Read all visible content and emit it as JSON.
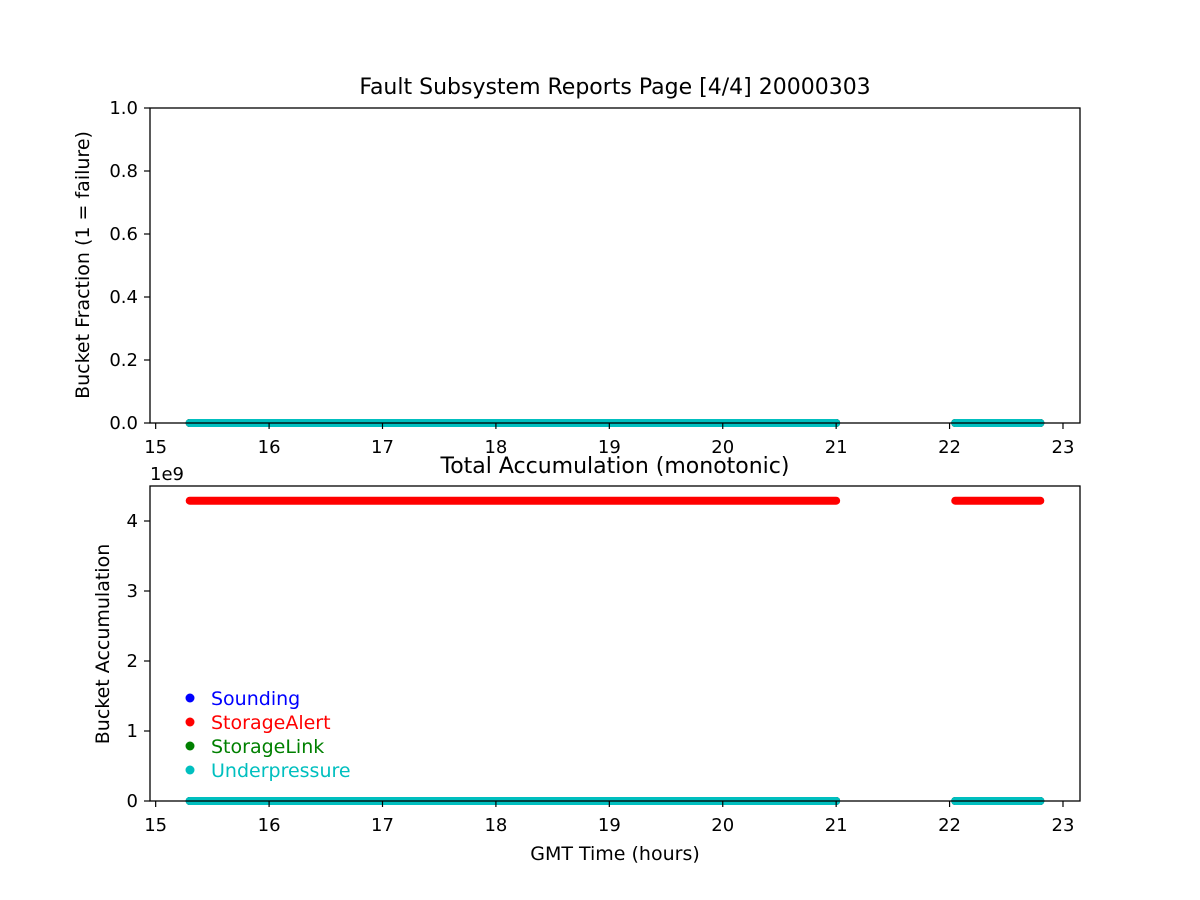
{
  "chart_data": [
    {
      "type": "scatter",
      "title": "Fault Subsystem Reports Page [4/4] 20000303",
      "xlabel": "",
      "ylabel": "Bucket Fraction (1 = failure)",
      "xlim": [
        14.95,
        23.15
      ],
      "ylim": [
        0.0,
        1.0
      ],
      "xticks": [
        "15",
        "16",
        "17",
        "18",
        "19",
        "20",
        "21",
        "22",
        "23"
      ],
      "yticks": [
        "0.0",
        "0.2",
        "0.4",
        "0.6",
        "0.8",
        "1.0"
      ],
      "grid": false,
      "series": [
        {
          "name": "Sounding",
          "color": "#0000ff",
          "segments": [
            [
              15.3,
              21.0
            ],
            [
              22.05,
              22.8
            ]
          ],
          "y": 0
        },
        {
          "name": "StorageAlert",
          "color": "#ff0000",
          "segments": [
            [
              15.3,
              21.0
            ],
            [
              22.05,
              22.8
            ]
          ],
          "y": 0
        },
        {
          "name": "StorageLink",
          "color": "#008000",
          "segments": [
            [
              15.3,
              21.0
            ],
            [
              22.05,
              22.8
            ]
          ],
          "y": 0
        },
        {
          "name": "Underpressure",
          "color": "#00bfbf",
          "segments": [
            [
              15.3,
              21.0
            ],
            [
              22.05,
              22.8
            ]
          ],
          "y": 0
        }
      ]
    },
    {
      "type": "scatter",
      "title": "Total Accumulation (monotonic)",
      "xlabel": "GMT Time (hours)",
      "ylabel": "Bucket Accumulation",
      "offset_label": "1e9",
      "xlim": [
        14.95,
        23.15
      ],
      "ylim": [
        0,
        4.5
      ],
      "xticks": [
        "15",
        "16",
        "17",
        "18",
        "19",
        "20",
        "21",
        "22",
        "23"
      ],
      "yticks": [
        "0",
        "1",
        "2",
        "3",
        "4"
      ],
      "grid": false,
      "legend_position": "lower-left",
      "series": [
        {
          "name": "Sounding",
          "color": "#0000ff",
          "segments": [
            [
              15.3,
              21.0
            ],
            [
              22.05,
              22.8
            ]
          ],
          "y": 0
        },
        {
          "name": "StorageAlert",
          "color": "#ff0000",
          "segments": [
            [
              15.3,
              21.0
            ],
            [
              22.05,
              22.8
            ]
          ],
          "y": 4.29
        },
        {
          "name": "StorageLink",
          "color": "#008000",
          "segments": [
            [
              15.3,
              21.0
            ],
            [
              22.05,
              22.8
            ]
          ],
          "y": 0
        },
        {
          "name": "Underpressure",
          "color": "#00bfbf",
          "segments": [
            [
              15.3,
              21.0
            ],
            [
              22.05,
              22.8
            ]
          ],
          "y": 0
        }
      ]
    }
  ]
}
